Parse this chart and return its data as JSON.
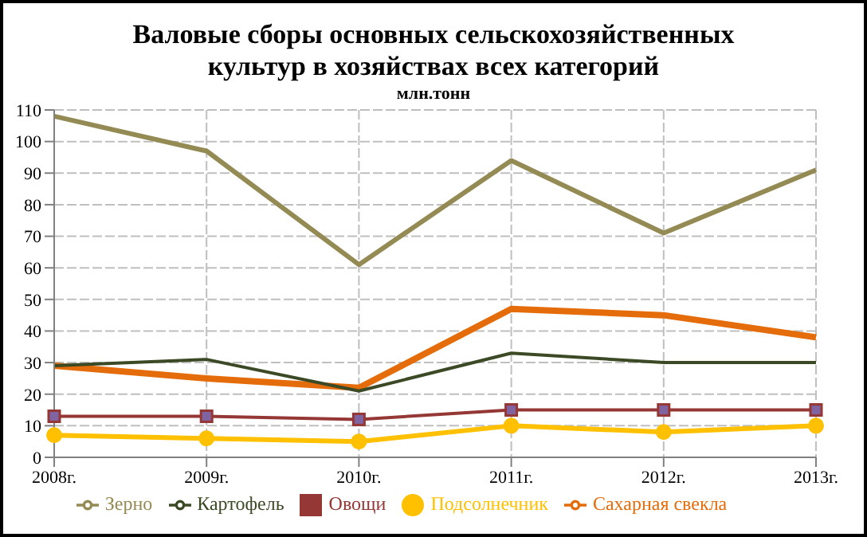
{
  "chart_data": {
    "type": "line",
    "title": "Валовые сборы основных сельскохозяйственных культур в хозяйствах всех категорий",
    "subtitle": "млн.тонн",
    "categories": [
      "2008г.",
      "2009г.",
      "2010г.",
      "2011г.",
      "2012г.",
      "2013г."
    ],
    "series": [
      {
        "name": "Зерно",
        "color": "#948a54",
        "values": [
          108,
          97,
          61,
          94,
          71,
          91
        ]
      },
      {
        "name": "Сахарная свекла",
        "color": "#e46c0a",
        "values": [
          29,
          25,
          22,
          47,
          45,
          38
        ]
      },
      {
        "name": "Картофель",
        "color": "#3b4a24",
        "values": [
          29,
          31,
          21,
          33,
          30,
          30
        ]
      },
      {
        "name": "Овощи",
        "color": "#953735",
        "values": [
          13,
          13,
          12,
          15,
          15,
          15
        ],
        "marker": "square"
      },
      {
        "name": "Подсолнечник",
        "color": "#ffc000",
        "values": [
          7,
          6,
          5,
          10,
          8,
          10
        ],
        "marker": "circle"
      }
    ],
    "ylim": [
      0,
      110
    ],
    "yticks": [
      0,
      10,
      20,
      30,
      40,
      50,
      60,
      70,
      80,
      90,
      100,
      110
    ],
    "grid": true,
    "legend": "bottom"
  }
}
